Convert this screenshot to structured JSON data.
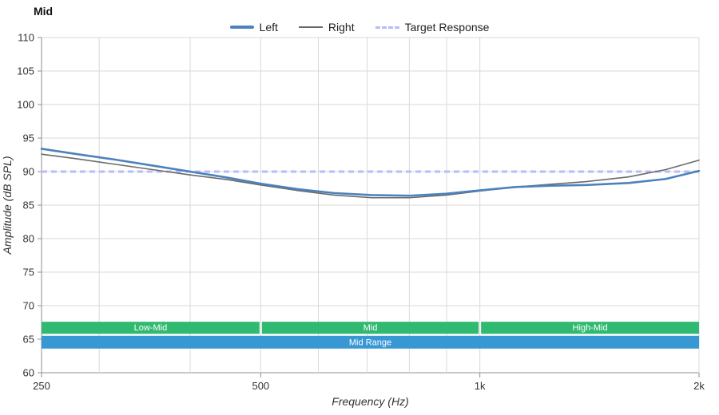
{
  "title": "Mid",
  "legend": [
    {
      "label": "Left",
      "color": "#4b82bd",
      "style": "solid-thick"
    },
    {
      "label": "Right",
      "color": "#6a6a6a",
      "style": "solid-thin"
    },
    {
      "label": "Target Response",
      "color": "#b7bdf8",
      "style": "dashed"
    }
  ],
  "chart_data": {
    "type": "line",
    "title": "Mid",
    "xlabel": "Frequency (Hz)",
    "ylabel": "Amplitude (dB SPL)",
    "x_scale": "log",
    "xlim": [
      250,
      2000
    ],
    "ylim": [
      60,
      110
    ],
    "y_tick_step": 5,
    "x_ticks": [
      {
        "value": 250,
        "label": "250"
      },
      {
        "value": 500,
        "label": "500"
      },
      {
        "value": 1000,
        "label": "1k"
      },
      {
        "value": 2000,
        "label": "2k"
      }
    ],
    "x_gridlines": [
      300,
      400,
      500,
      600,
      700,
      800,
      900,
      1000,
      2000
    ],
    "grid_color": "#d9d9d9",
    "axis_color": "#8f8f8f",
    "frequencies": [
      250,
      280,
      315,
      355,
      400,
      450,
      500,
      560,
      630,
      710,
      800,
      900,
      1000,
      1120,
      1250,
      1400,
      1600,
      1800,
      2000
    ],
    "series": [
      {
        "name": "Left",
        "color": "#4b82bd",
        "width": 2.6,
        "values": [
          93.4,
          92.6,
          91.8,
          90.9,
          90.0,
          89.1,
          88.2,
          87.4,
          86.8,
          86.5,
          86.4,
          86.7,
          87.2,
          87.7,
          87.9,
          88.0,
          88.3,
          88.9,
          90.1
        ]
      },
      {
        "name": "Right",
        "color": "#6a6a6a",
        "width": 1.6,
        "values": [
          92.6,
          91.9,
          91.1,
          90.3,
          89.5,
          88.8,
          88.0,
          87.2,
          86.5,
          86.1,
          86.1,
          86.5,
          87.1,
          87.7,
          88.1,
          88.5,
          89.2,
          90.3,
          91.7
        ]
      }
    ],
    "target": {
      "name": "Target Response",
      "color": "#b7bdf8",
      "width": 3,
      "dash": [
        7,
        5
      ],
      "value": 90
    },
    "bands": [
      {
        "label": "Low-Mid",
        "from": 250,
        "to": 500,
        "db_from": 65.8,
        "db_to": 67.6,
        "color": "#30ba71"
      },
      {
        "label": "Mid",
        "from": 500,
        "to": 1000,
        "db_from": 65.8,
        "db_to": 67.6,
        "color": "#30ba71"
      },
      {
        "label": "High-Mid",
        "from": 1000,
        "to": 2000,
        "db_from": 65.8,
        "db_to": 67.6,
        "color": "#30ba71"
      },
      {
        "label": "Mid Range",
        "from": 250,
        "to": 2000,
        "db_from": 63.6,
        "db_to": 65.5,
        "color": "#3898d4"
      }
    ]
  }
}
